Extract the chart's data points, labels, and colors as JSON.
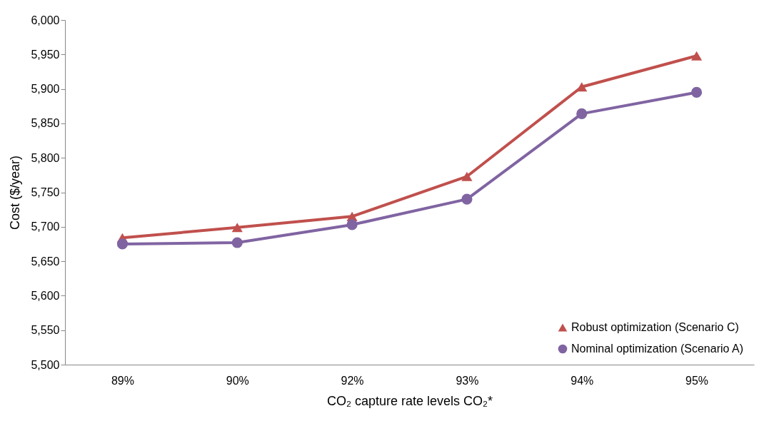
{
  "chart_data": {
    "type": "line",
    "xlabel": "CO₂ capture rate levels CO₂*",
    "ylabel": "Cost ($/year)",
    "categories": [
      "89%",
      "90%",
      "92%",
      "93%",
      "94%",
      "95%"
    ],
    "series": [
      {
        "name": "Robust optimization (Scenario C)",
        "color": "#c0504d",
        "marker": "triangle",
        "values": [
          5684,
          5699,
          5715,
          5773,
          5903,
          5948
        ]
      },
      {
        "name": "Nominal optimization (Scenario A)",
        "color": "#8064a2",
        "marker": "circle",
        "values": [
          5675,
          5677,
          5703,
          5740,
          5864,
          5895
        ]
      }
    ],
    "ylim": [
      5500,
      6000
    ],
    "yticks": [
      {
        "value": 5500,
        "label": "5,500"
      },
      {
        "value": 5550,
        "label": "5,550"
      },
      {
        "value": 5600,
        "label": "5,600"
      },
      {
        "value": 5650,
        "label": "5,650"
      },
      {
        "value": 5700,
        "label": "5,700"
      },
      {
        "value": 5750,
        "label": "5,750"
      },
      {
        "value": 5800,
        "label": "5,800"
      },
      {
        "value": 5850,
        "label": "5,850"
      },
      {
        "value": 5900,
        "label": "5,900"
      },
      {
        "value": 5950,
        "label": "5,950"
      },
      {
        "value": 6000,
        "label": "6,000"
      }
    ],
    "grid": false,
    "legend": "bottom right",
    "line_style": "solid"
  }
}
